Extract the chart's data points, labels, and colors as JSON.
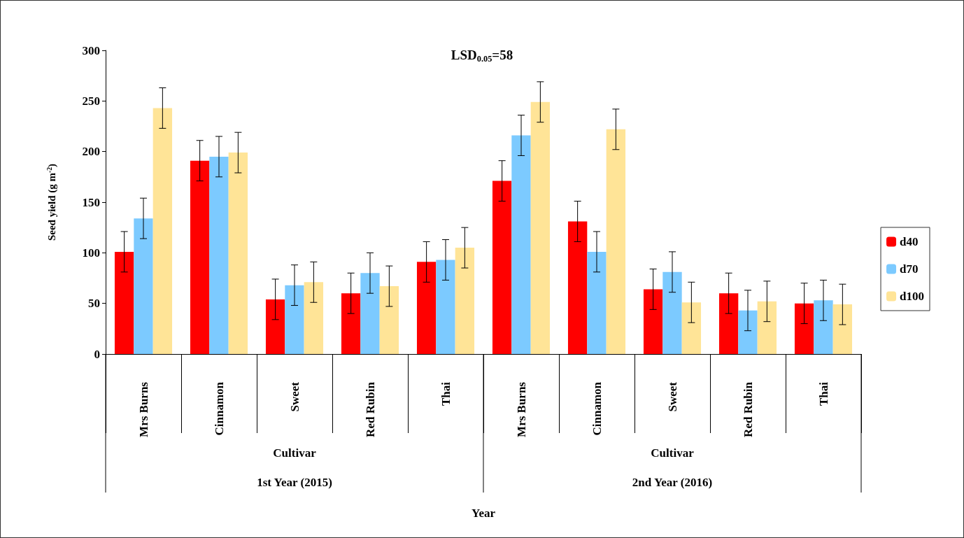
{
  "chart_data": {
    "type": "bar",
    "title": "LSD$_{0.05}$=58",
    "ylabel": "Seed yield (g m$^{-2}$)",
    "categories": [
      "Mrs Burns",
      "Cinnamon",
      "Sweet",
      "Red Rubin",
      "Thai",
      "Mrs Burns",
      "Cinnamon",
      "Sweet",
      "Red Rubin",
      "Thai"
    ],
    "series": [
      {
        "name": "d40",
        "color": "#ff0000",
        "values": [
          101,
          191,
          54,
          60,
          91,
          171,
          131,
          64,
          60,
          50
        ],
        "errors": [
          20,
          20,
          20,
          20,
          20,
          20,
          20,
          20,
          20,
          20
        ]
      },
      {
        "name": "d70",
        "color": "#7ccaff",
        "values": [
          134,
          195,
          68,
          80,
          93,
          216,
          101,
          81,
          43,
          53
        ],
        "errors": [
          20,
          20,
          20,
          20,
          20,
          20,
          20,
          20,
          20,
          20
        ]
      },
      {
        "name": "d100",
        "color": "#ffe497",
        "values": [
          243,
          199,
          71,
          67,
          105,
          249,
          222,
          51,
          52,
          49
        ],
        "errors": [
          20,
          20,
          20,
          20,
          20,
          20,
          20,
          20,
          20,
          20
        ]
      }
    ],
    "annotations": [
      "Cultivar",
      "1st Year (2015)",
      "Cultivar",
      "2nd Year (2016)",
      "Year"
    ],
    "ylim": [
      0,
      300
    ],
    "yticks": [
      0,
      50,
      100,
      150,
      200,
      250,
      300
    ],
    "grid": false,
    "legend": "right"
  }
}
